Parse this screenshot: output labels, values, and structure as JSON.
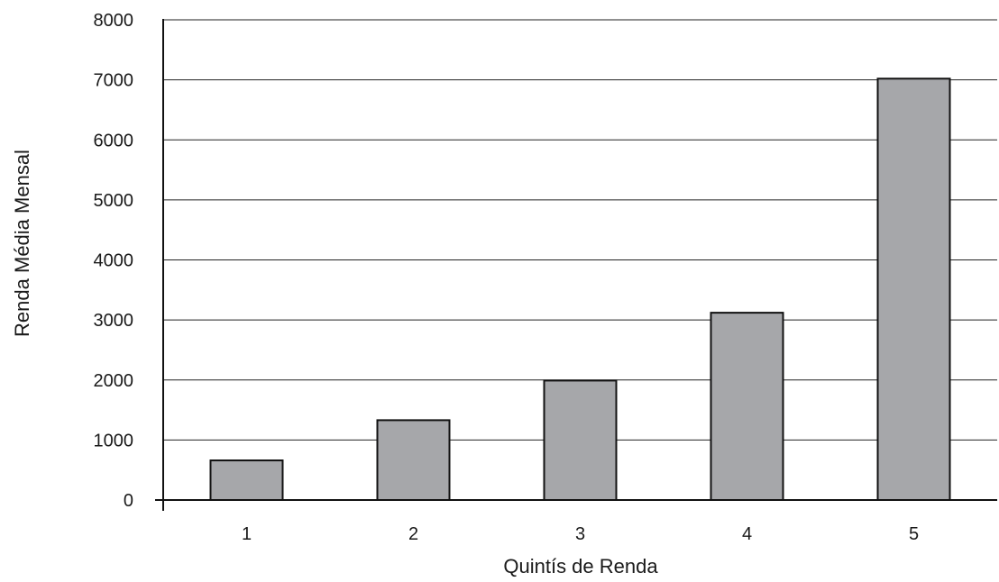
{
  "chart_data": {
    "type": "bar",
    "categories": [
      "1",
      "2",
      "3",
      "4",
      "5"
    ],
    "values": [
      660,
      1330,
      1990,
      3120,
      7020
    ],
    "title": "",
    "xlabel": "Quintís de Renda",
    "ylabel": "Renda Média Mensal",
    "ylim": [
      0,
      8000
    ],
    "yticks": [
      "0",
      "1000",
      "2000",
      "3000",
      "4000",
      "5000",
      "6000",
      "7000",
      "8000"
    ],
    "grid": true,
    "legend": "none",
    "bar_color": "#a6a7aa"
  }
}
